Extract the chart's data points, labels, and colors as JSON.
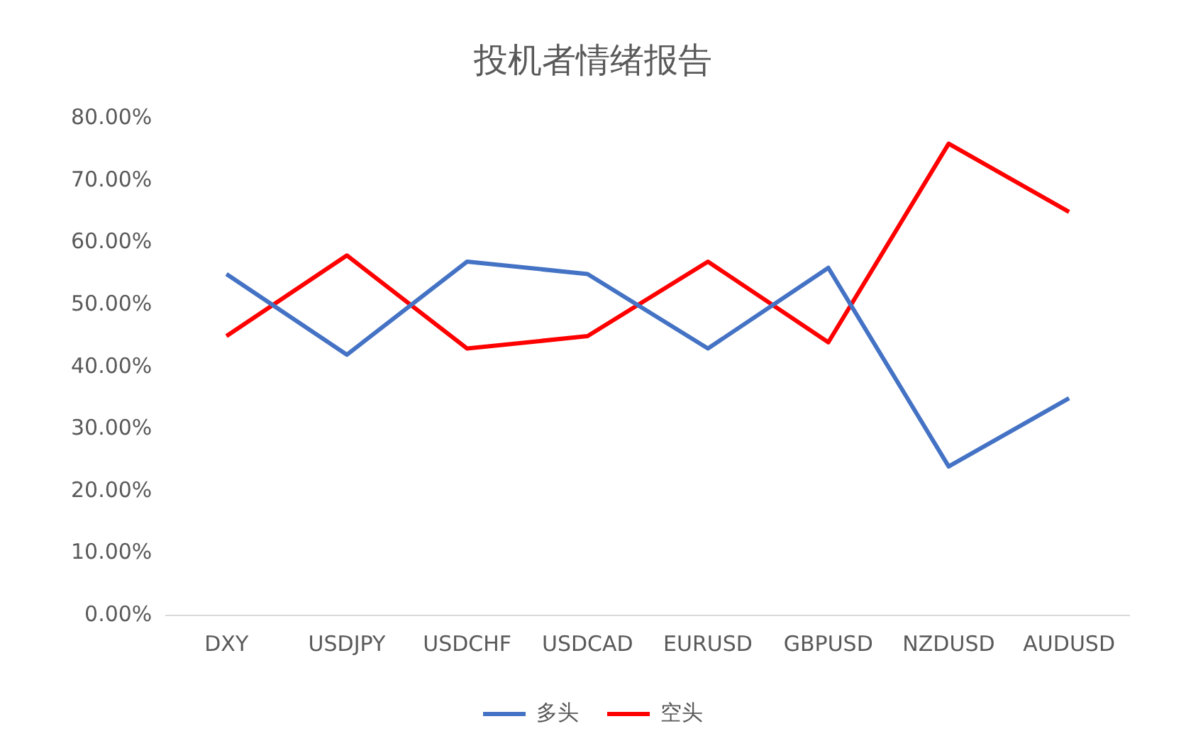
{
  "chart_data": {
    "type": "line",
    "title": "投机者情绪报告",
    "categories": [
      "DXY",
      "USDJPY",
      "USDCHF",
      "USDCAD",
      "EURUSD",
      "GBPUSD",
      "NZDUSD",
      "AUDUSD"
    ],
    "series": [
      {
        "name": "多头",
        "color": "#4472c4",
        "values": [
          55,
          42,
          57,
          55,
          43,
          56,
          24,
          35
        ]
      },
      {
        "name": "空头",
        "color": "#ff0000",
        "values": [
          45,
          58,
          43,
          45,
          57,
          44,
          76,
          65
        ]
      }
    ],
    "ylim": [
      0,
      80
    ],
    "yticks": [
      {
        "value": 0,
        "label": "0.00%"
      },
      {
        "value": 10,
        "label": "10.00%"
      },
      {
        "value": 20,
        "label": "20.00%"
      },
      {
        "value": 30,
        "label": "30.00%"
      },
      {
        "value": 40,
        "label": "40.00%"
      },
      {
        "value": 50,
        "label": "50.00%"
      },
      {
        "value": 60,
        "label": "60.00%"
      },
      {
        "value": 70,
        "label": "70.00%"
      },
      {
        "value": 80,
        "label": "80.00%"
      }
    ],
    "grid": false,
    "legend": "bottom",
    "marker": "none",
    "line_style": "solid"
  }
}
